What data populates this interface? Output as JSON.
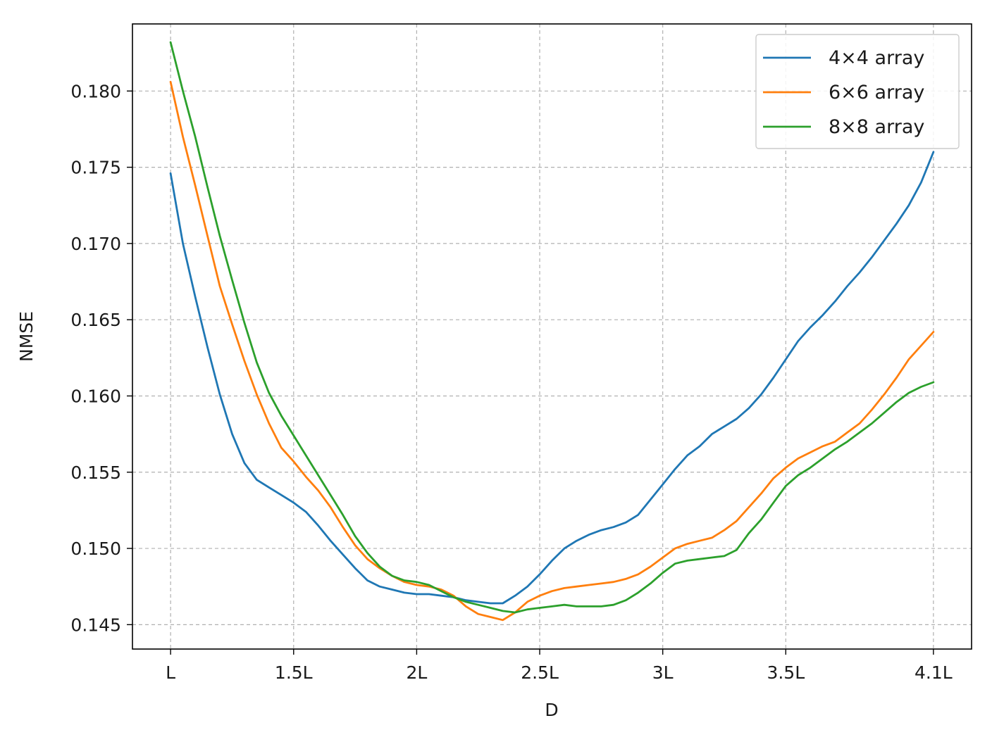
{
  "chart_data": {
    "type": "line",
    "xlabel": "D",
    "ylabel": "NMSE",
    "x_ticks": [
      {
        "value": 1.0,
        "label": "L"
      },
      {
        "value": 1.5,
        "label": "1.5L"
      },
      {
        "value": 2.0,
        "label": "2L"
      },
      {
        "value": 2.5,
        "label": "2.5L"
      },
      {
        "value": 3.0,
        "label": "3L"
      },
      {
        "value": 3.5,
        "label": "3.5L"
      },
      {
        "value": 4.1,
        "label": "4.1L"
      }
    ],
    "y_ticks": [
      {
        "value": 0.145,
        "label": "0.145"
      },
      {
        "value": 0.15,
        "label": "0.150"
      },
      {
        "value": 0.155,
        "label": "0.155"
      },
      {
        "value": 0.16,
        "label": "0.160"
      },
      {
        "value": 0.165,
        "label": "0.165"
      },
      {
        "value": 0.17,
        "label": "0.170"
      },
      {
        "value": 0.175,
        "label": "0.175"
      },
      {
        "value": 0.18,
        "label": "0.180"
      }
    ],
    "xlim": [
      0.845,
      4.255
    ],
    "ylim": [
      0.1434,
      0.1844
    ],
    "grid": true,
    "legend_position": "top-right",
    "x": [
      1.0,
      1.05,
      1.1,
      1.15,
      1.2,
      1.25,
      1.3,
      1.35,
      1.4,
      1.45,
      1.5,
      1.55,
      1.6,
      1.65,
      1.7,
      1.75,
      1.8,
      1.85,
      1.9,
      1.95,
      2.0,
      2.05,
      2.1,
      2.15,
      2.2,
      2.25,
      2.3,
      2.35,
      2.4,
      2.45,
      2.5,
      2.55,
      2.6,
      2.65,
      2.7,
      2.75,
      2.8,
      2.85,
      2.9,
      2.95,
      3.0,
      3.05,
      3.1,
      3.15,
      3.2,
      3.25,
      3.3,
      3.35,
      3.4,
      3.45,
      3.5,
      3.55,
      3.6,
      3.65,
      3.7,
      3.75,
      3.8,
      3.85,
      3.9,
      3.95,
      4.0,
      4.05,
      4.1
    ],
    "series": [
      {
        "name": "4×4 array",
        "color": "#1f77b4",
        "values": [
          0.1746,
          0.17,
          0.1665,
          0.1632,
          0.1601,
          0.1575,
          0.1556,
          0.1545,
          0.154,
          0.1535,
          0.153,
          0.1524,
          0.1515,
          0.1505,
          0.1496,
          0.1487,
          0.1479,
          0.1475,
          0.1473,
          0.1471,
          0.147,
          0.147,
          0.1469,
          0.1468,
          0.1466,
          0.1465,
          0.1464,
          0.1464,
          0.1469,
          0.1475,
          0.1483,
          0.1492,
          0.15,
          0.1505,
          0.1509,
          0.1512,
          0.1514,
          0.1517,
          0.1522,
          0.1532,
          0.1542,
          0.1552,
          0.1561,
          0.1567,
          0.1575,
          0.158,
          0.1585,
          0.1592,
          0.1601,
          0.1612,
          0.1624,
          0.1636,
          0.1645,
          0.1653,
          0.1662,
          0.1672,
          0.1681,
          0.1691,
          0.1702,
          0.1713,
          0.1725,
          0.174,
          0.176
        ]
      },
      {
        "name": "6×6 array",
        "color": "#ff7f0e",
        "values": [
          0.1806,
          0.177,
          0.1738,
          0.1705,
          0.1672,
          0.1647,
          0.1623,
          0.1601,
          0.1582,
          0.1566,
          0.1557,
          0.1547,
          0.1538,
          0.1527,
          0.1514,
          0.1502,
          0.1493,
          0.1487,
          0.1482,
          0.1478,
          0.1476,
          0.1475,
          0.1473,
          0.1469,
          0.1462,
          0.1457,
          0.1455,
          0.1453,
          0.1458,
          0.1465,
          0.1469,
          0.1472,
          0.1474,
          0.1475,
          0.1476,
          0.1477,
          0.1478,
          0.148,
          0.1483,
          0.1488,
          0.1494,
          0.15,
          0.1503,
          0.1505,
          0.1507,
          0.1512,
          0.1518,
          0.1527,
          0.1536,
          0.1546,
          0.1553,
          0.1559,
          0.1563,
          0.1567,
          0.157,
          0.1576,
          0.1582,
          0.1591,
          0.1601,
          0.1612,
          0.1624,
          0.1633,
          0.1642
        ]
      },
      {
        "name": "8×8 array",
        "color": "#2ca02c",
        "values": [
          0.1832,
          0.18,
          0.177,
          0.1737,
          0.1705,
          0.1676,
          0.1648,
          0.1622,
          0.1602,
          0.1587,
          0.1574,
          0.1561,
          0.1548,
          0.1535,
          0.1522,
          0.1508,
          0.1497,
          0.1488,
          0.1482,
          0.1479,
          0.1478,
          0.1476,
          0.1472,
          0.1468,
          0.1465,
          0.1463,
          0.1461,
          0.1459,
          0.1458,
          0.146,
          0.1461,
          0.1462,
          0.1463,
          0.1462,
          0.1462,
          0.1462,
          0.1463,
          0.1466,
          0.1471,
          0.1477,
          0.1484,
          0.149,
          0.1492,
          0.1493,
          0.1494,
          0.1495,
          0.1499,
          0.151,
          0.1519,
          0.153,
          0.1541,
          0.1548,
          0.1553,
          0.1559,
          0.1565,
          0.157,
          0.1576,
          0.1582,
          0.1589,
          0.1596,
          0.1602,
          0.1606,
          0.1609
        ]
      }
    ]
  }
}
